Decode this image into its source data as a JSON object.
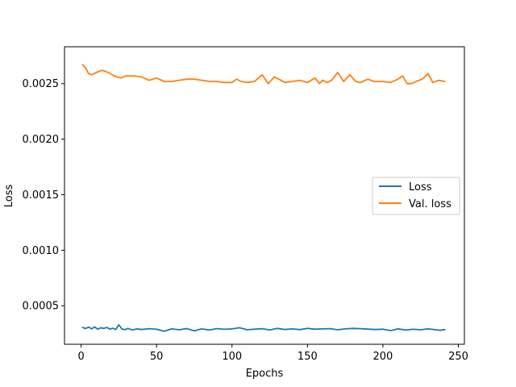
{
  "chart_data": {
    "type": "line",
    "title": "",
    "xlabel": "Epochs",
    "ylabel": "Loss",
    "xlim": [
      -11,
      254
    ],
    "ylim": [
      0.0001532,
      0.0028318
    ],
    "xticks": [
      0,
      50,
      100,
      150,
      200,
      250
    ],
    "xtick_labels": [
      "0",
      "50",
      "100",
      "150",
      "200",
      "250"
    ],
    "yticks": [
      0.0005,
      0.001,
      0.0015,
      0.002,
      0.0025
    ],
    "ytick_labels": [
      "0.0005",
      "0.0010",
      "0.0015",
      "0.0020",
      "0.0025"
    ],
    "grid": false,
    "legend_position": "center-right",
    "series": [
      {
        "name": "Loss",
        "color": "#1f77b4",
        "x": [
          1,
          3,
          5,
          7,
          9,
          11,
          13,
          15,
          17,
          19,
          21,
          23,
          25,
          27,
          29,
          31,
          34,
          37,
          40,
          45,
          50,
          55,
          60,
          65,
          70,
          75,
          80,
          85,
          90,
          95,
          100,
          105,
          110,
          115,
          120,
          125,
          130,
          135,
          140,
          145,
          150,
          155,
          160,
          165,
          170,
          175,
          180,
          185,
          190,
          195,
          200,
          205,
          210,
          215,
          220,
          225,
          230,
          235,
          238,
          241
        ],
        "values": [
          0.000305,
          0.000295,
          0.000308,
          0.000292,
          0.00031,
          0.000288,
          0.000302,
          0.000296,
          0.000305,
          0.00029,
          0.000298,
          0.000285,
          0.000328,
          0.000292,
          0.000284,
          0.000296,
          0.000282,
          0.000292,
          0.000286,
          0.000294,
          0.000288,
          0.00027,
          0.000292,
          0.000284,
          0.000295,
          0.000274,
          0.000292,
          0.000282,
          0.000294,
          0.000288,
          0.000292,
          0.000302,
          0.000284,
          0.000289,
          0.000294,
          0.000282,
          0.000296,
          0.000286,
          0.000292,
          0.000285,
          0.000296,
          0.000289,
          0.000292,
          0.000294,
          0.000284,
          0.000292,
          0.000296,
          0.000294,
          0.00029,
          0.000286,
          0.000289,
          0.000276,
          0.000292,
          0.000282,
          0.000288,
          0.000284,
          0.000292,
          0.000284,
          0.000279,
          0.000285
        ]
      },
      {
        "name": "Val. loss",
        "color": "#ff7f0e",
        "x": [
          1,
          3,
          5,
          7,
          10,
          14,
          18,
          22,
          26,
          30,
          35,
          40,
          45,
          50,
          55,
          60,
          65,
          70,
          75,
          80,
          85,
          90,
          95,
          100,
          103,
          106,
          110,
          115,
          120,
          124,
          128,
          131,
          135,
          140,
          145,
          150,
          155,
          158,
          160,
          163,
          166,
          170,
          174,
          178,
          182,
          185,
          190,
          194,
          200,
          205,
          210,
          213,
          216,
          219,
          222,
          226,
          230,
          233,
          237,
          241
        ],
        "values": [
          0.00267,
          0.00264,
          0.00259,
          0.00258,
          0.0026,
          0.00262,
          0.0026,
          0.00257,
          0.00255,
          0.00257,
          0.00257,
          0.00256,
          0.00253,
          0.00255,
          0.00252,
          0.00252,
          0.00253,
          0.00254,
          0.00254,
          0.00253,
          0.00252,
          0.00252,
          0.00251,
          0.00251,
          0.00254,
          0.00252,
          0.00251,
          0.00252,
          0.00258,
          0.0025,
          0.00256,
          0.00254,
          0.00251,
          0.00252,
          0.00253,
          0.00251,
          0.00255,
          0.0025,
          0.00253,
          0.00251,
          0.00253,
          0.0026,
          0.00252,
          0.00258,
          0.00252,
          0.00251,
          0.00254,
          0.00252,
          0.00252,
          0.00251,
          0.00254,
          0.00257,
          0.0025,
          0.0025,
          0.00252,
          0.00254,
          0.00259,
          0.00251,
          0.00253,
          0.00252
        ]
      }
    ]
  }
}
